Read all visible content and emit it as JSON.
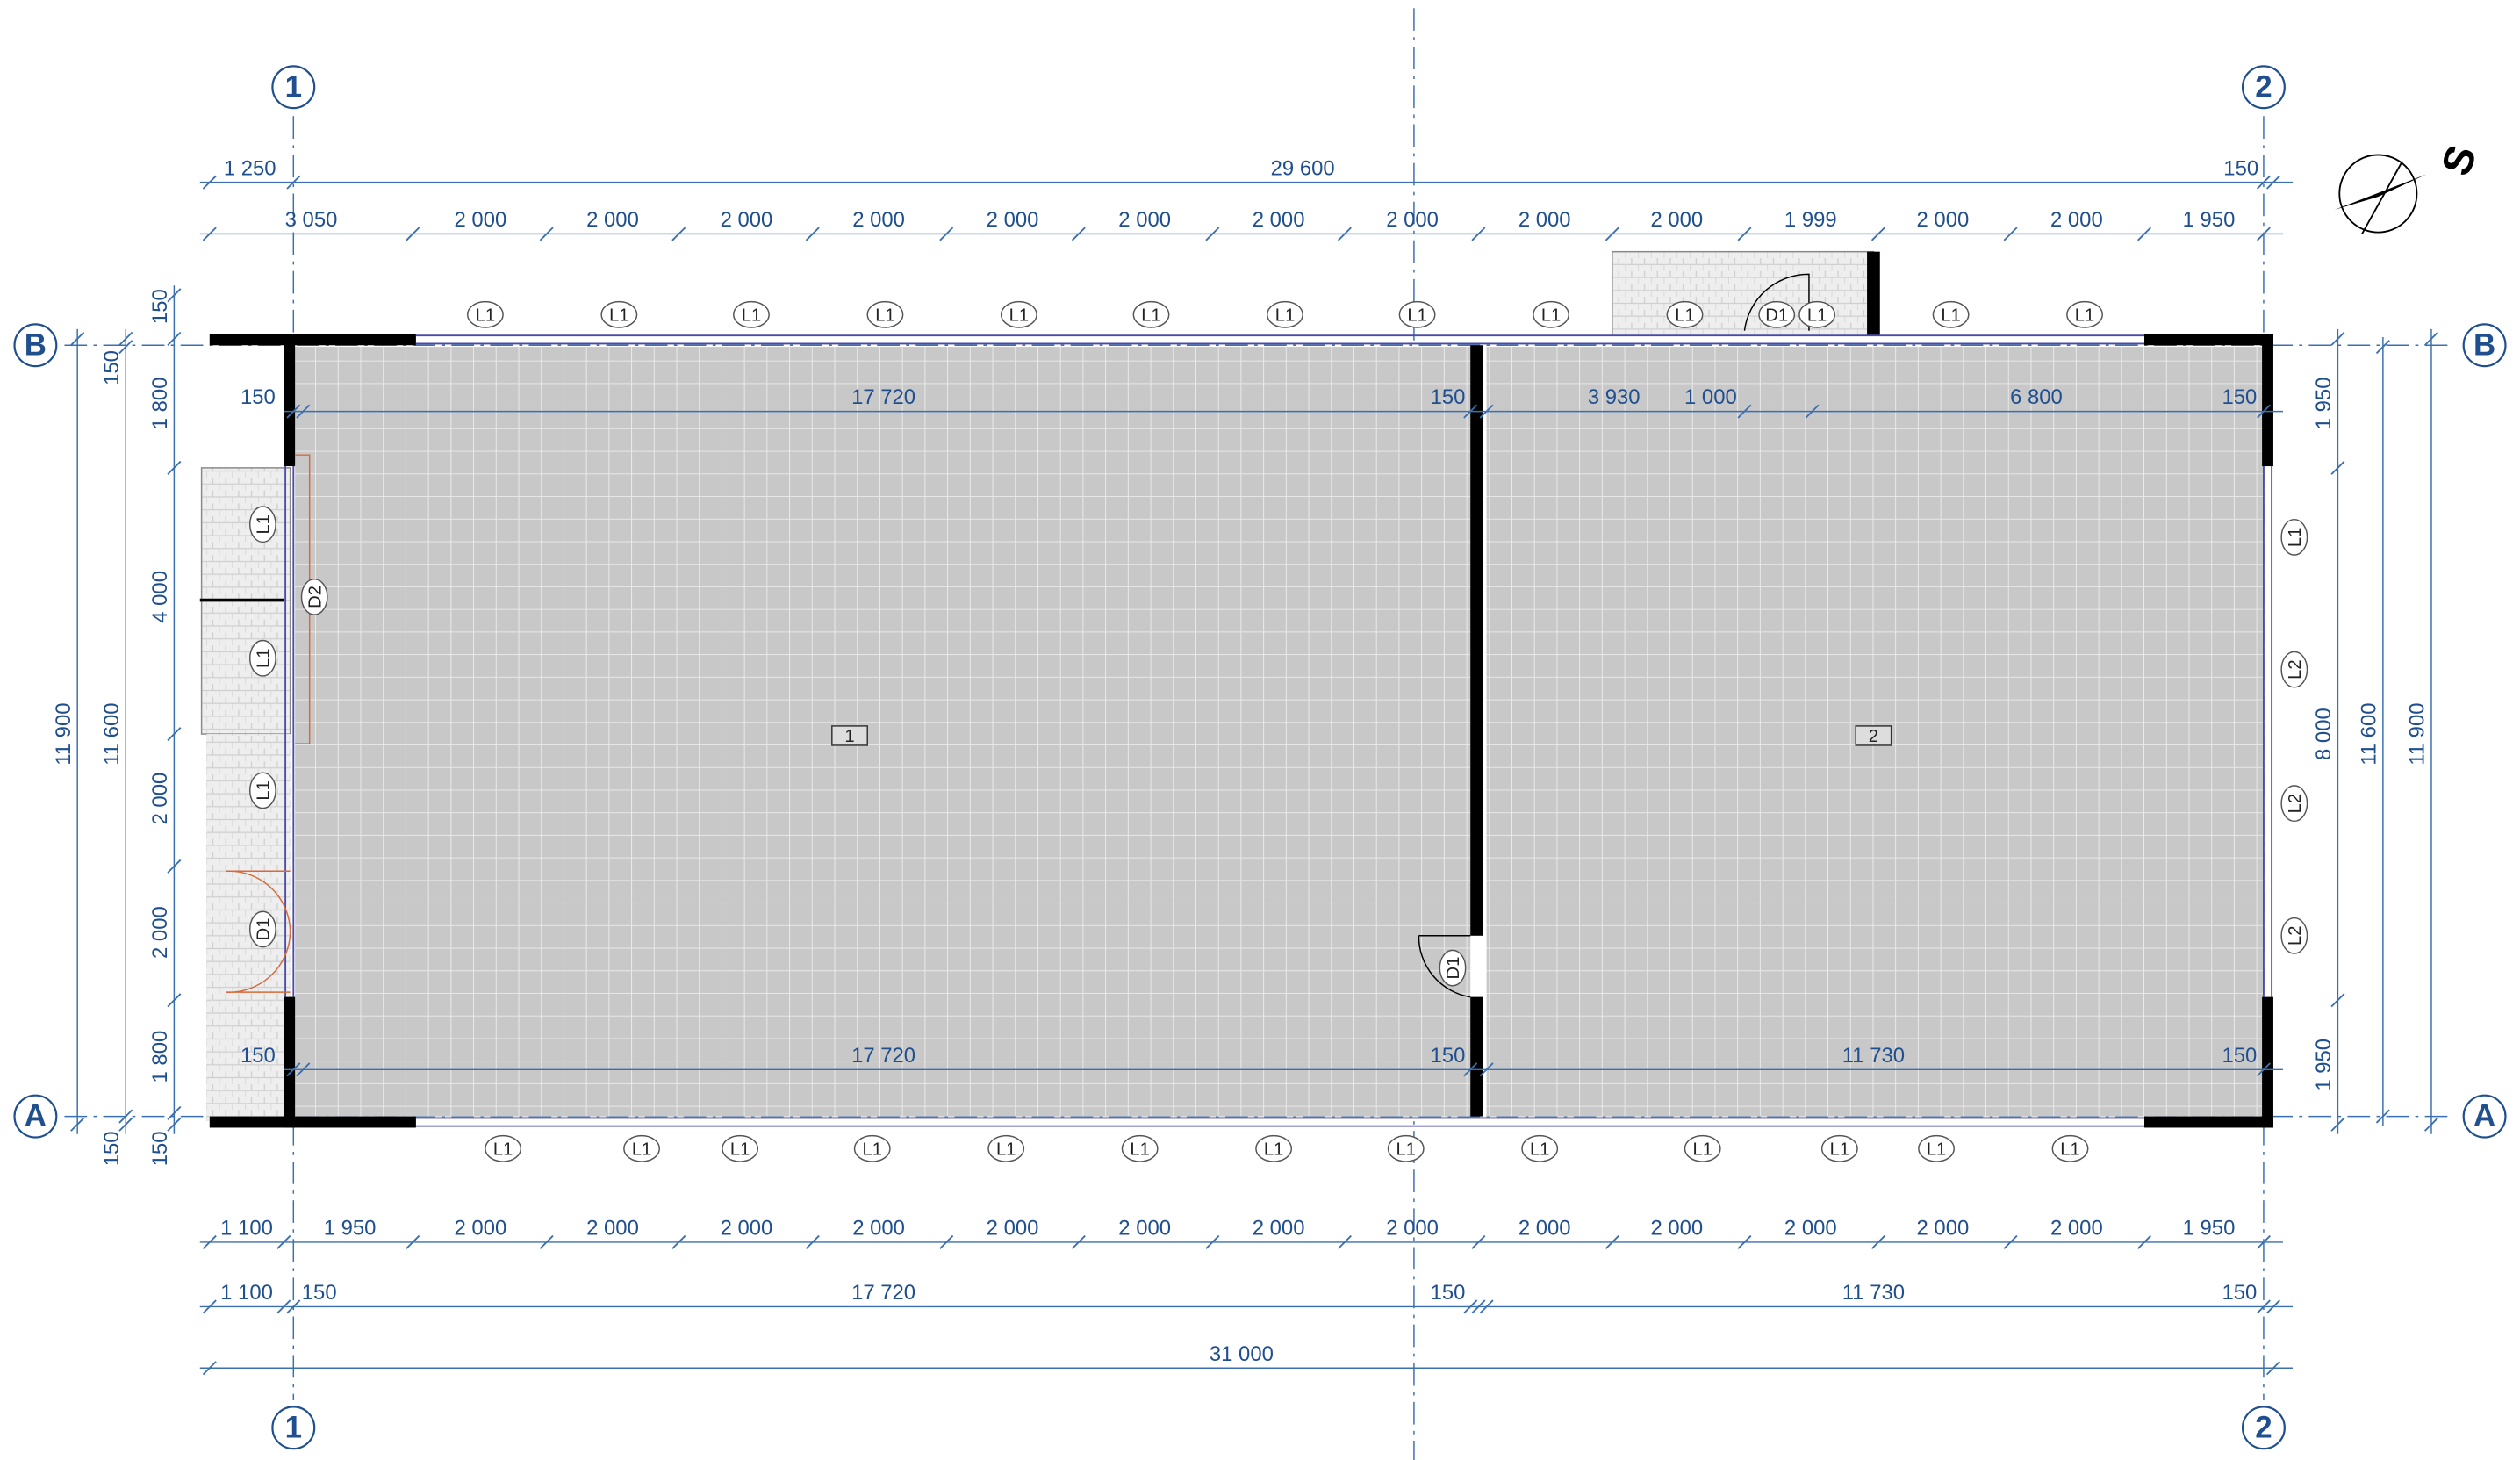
{
  "grid_bubbles": {
    "top": [
      "1",
      "2"
    ],
    "bottom": [
      "1",
      "2"
    ],
    "left": [
      "B",
      "A"
    ],
    "right": [
      "B",
      "A"
    ]
  },
  "compass": "S",
  "dimensions": {
    "top_overall": [
      "1 250",
      "29 600",
      "150"
    ],
    "top_axes": [
      "3 050",
      "2 000",
      "2 000",
      "2 000",
      "2 000",
      "2 000",
      "2 000",
      "2 000",
      "2 000",
      "2 000",
      "2 000",
      "1 999",
      "2 000",
      "2 000",
      "1 950"
    ],
    "interior_north": [
      "150",
      "17 720",
      "150",
      "3 930",
      "1 000",
      "6 800",
      "150"
    ],
    "interior_south": [
      "150",
      "17 720",
      "150",
      "11 730",
      "150"
    ],
    "bottom_axes": [
      "1 100",
      "1 950",
      "2 000",
      "2 000",
      "2 000",
      "2 000",
      "2 000",
      "2 000",
      "2 000",
      "2 000",
      "2 000",
      "2 000",
      "2 000",
      "2 000",
      "2 000",
      "1 950"
    ],
    "bottom_walls": [
      "1 100",
      "150",
      "17 720",
      "150",
      "11 730",
      "150"
    ],
    "bottom_overall": [
      "31 000"
    ],
    "left_inner": [
      "150",
      "1 800",
      "4 000",
      "2 000",
      "2 000",
      "1 800",
      "150"
    ],
    "left_middle": [
      "150",
      "11 600",
      "150"
    ],
    "left_outer": [
      "11 900"
    ],
    "right_inner": [
      "1 950",
      "8 000",
      "1 950"
    ],
    "right_middle": [
      "11 600"
    ],
    "right_outer": [
      "11 900"
    ]
  },
  "tags": {
    "north": [
      "L1",
      "L1",
      "L1",
      "L1",
      "L1",
      "L1",
      "L1",
      "L1",
      "L1",
      "L1",
      "D1",
      "L1",
      "L1",
      "L1"
    ],
    "south": [
      "L1",
      "L1",
      "L1",
      "L1",
      "L1",
      "L1",
      "L1",
      "L1",
      "L1",
      "L1",
      "L1",
      "L1",
      "L1"
    ],
    "west": [
      "L1",
      "D2",
      "L1",
      "L1",
      "D1"
    ],
    "east": [
      "L1",
      "L2",
      "L2",
      "L2"
    ],
    "interior": [
      "D1"
    ]
  },
  "rooms": [
    "1",
    "2"
  ]
}
